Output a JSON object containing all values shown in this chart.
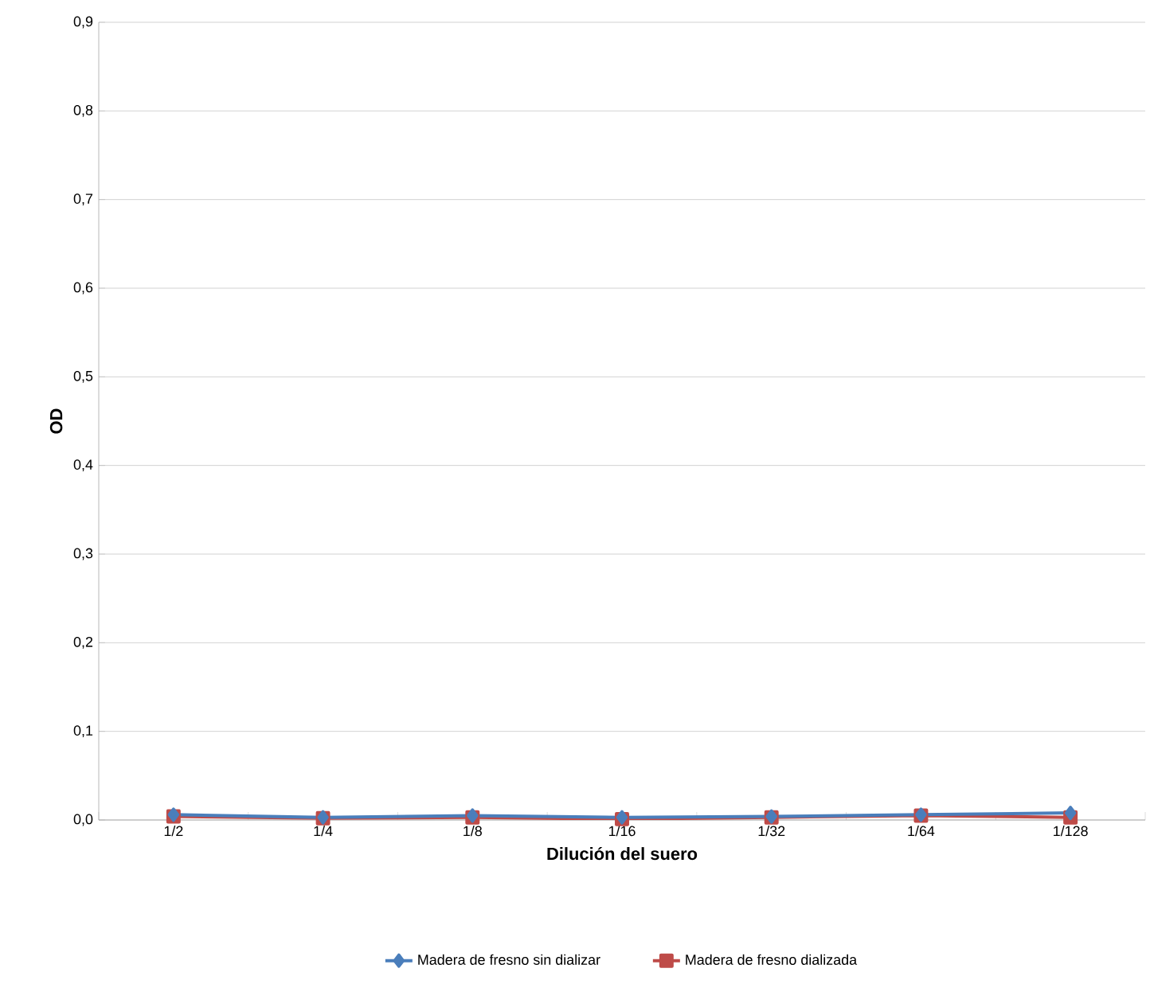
{
  "chart_data": {
    "type": "line",
    "xlabel": "Dilución del suero",
    "ylabel": "OD",
    "categories": [
      "1/2",
      "1/4",
      "1/8",
      "1/16",
      "1/32",
      "1/64",
      "1/128"
    ],
    "series": [
      {
        "name": "Madera de fresno sin dializar",
        "color": "#4a7ebb",
        "marker": "diamond",
        "values": [
          0.006,
          0.003,
          0.005,
          0.003,
          0.004,
          0.006,
          0.008
        ]
      },
      {
        "name": "Madera de fresno dializada",
        "color": "#be4b48",
        "marker": "square",
        "values": [
          0.004,
          0.002,
          0.003,
          0.001,
          0.003,
          0.005,
          0.003
        ]
      }
    ],
    "ylim": [
      0,
      0.9
    ],
    "yticks": [
      {
        "value": 0,
        "label": "0,0"
      },
      {
        "value": 0.1,
        "label": "0,1"
      },
      {
        "value": 0.2,
        "label": "0,2"
      },
      {
        "value": 0.3,
        "label": "0,3"
      },
      {
        "value": 0.4,
        "label": "0,4"
      },
      {
        "value": 0.5,
        "label": "0,5"
      },
      {
        "value": 0.6,
        "label": "0,6"
      },
      {
        "value": 0.7,
        "label": "0,7"
      },
      {
        "value": 0.8,
        "label": "0,8"
      },
      {
        "value": 0.9,
        "label": "0,9"
      }
    ],
    "grid": "y",
    "legend": "bottom",
    "line_style": "solid"
  }
}
